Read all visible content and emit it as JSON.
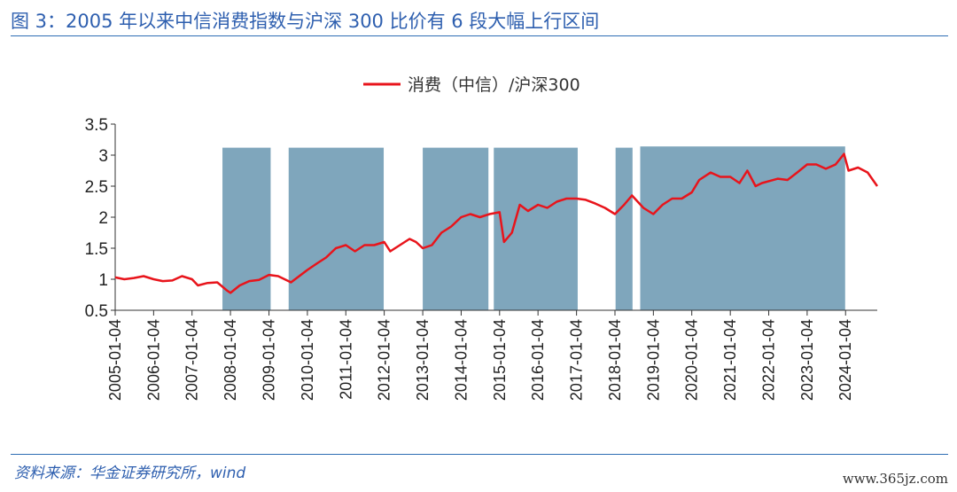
{
  "header": {
    "title": "图 3：2005 年以来中信消费指数与沪深 300 比价有 6 段大幅上行区间"
  },
  "footer": {
    "source": "资料来源：华金证券研究所，wind",
    "watermark": "www.365jz.com"
  },
  "colors": {
    "line": "#E8141B",
    "band": "#7FA6BC",
    "title": "#2E5FAF",
    "rule": "#2E6DB4"
  },
  "chart_data": {
    "type": "line",
    "title": "",
    "legend": {
      "position": "top-center",
      "entries": [
        "消费（中信）/沪深300"
      ]
    },
    "ylim": [
      0.5,
      3.5
    ],
    "yticks": [
      {
        "value": 0.5,
        "label": "0.5"
      },
      {
        "value": 1,
        "label": "1"
      },
      {
        "value": 1.5,
        "label": "1.5"
      },
      {
        "value": 2,
        "label": "2"
      },
      {
        "value": 2.5,
        "label": "2.5"
      },
      {
        "value": 3,
        "label": "3"
      },
      {
        "value": 3.5,
        "label": "3.5"
      }
    ],
    "xlim": [
      "2005-01-04",
      "2024-10-31"
    ],
    "xticks": [
      "2005-01-04",
      "2006-01-04",
      "2007-01-04",
      "2008-01-04",
      "2009-01-04",
      "2010-01-04",
      "2011-01-04",
      "2012-01-04",
      "2013-01-04",
      "2014-01-04",
      "2015-01-04",
      "2016-01-04",
      "2017-01-04",
      "2018-01-04",
      "2019-01-04",
      "2020-01-04",
      "2021-01-04",
      "2022-01-04",
      "2023-01-04",
      "2024-01-04"
    ],
    "grid": false,
    "shaded_ranges": [
      {
        "start": "2007-10-20",
        "end": "2009-01-20",
        "top": 3.12
      },
      {
        "start": "2009-07-10",
        "end": "2011-12-30",
        "top": 3.12
      },
      {
        "start": "2013-01-04",
        "end": "2014-09-20",
        "top": 3.12
      },
      {
        "start": "2014-11-10",
        "end": "2017-01-15",
        "top": 3.12
      },
      {
        "start": "2018-01-10",
        "end": "2018-06-20",
        "top": 3.12
      },
      {
        "start": "2018-09-01",
        "end": "2023-12-31",
        "top": 3.14
      }
    ],
    "series": [
      {
        "name": "消费（中信）/沪深300",
        "points": [
          [
            "2005-01-04",
            1.03
          ],
          [
            "2005-04-01",
            1.0
          ],
          [
            "2005-07-01",
            1.02
          ],
          [
            "2005-10-01",
            1.05
          ],
          [
            "2006-01-04",
            1.0
          ],
          [
            "2006-04-01",
            0.97
          ],
          [
            "2006-07-01",
            0.98
          ],
          [
            "2006-10-01",
            1.05
          ],
          [
            "2007-01-04",
            1.0
          ],
          [
            "2007-03-01",
            0.9
          ],
          [
            "2007-06-01",
            0.94
          ],
          [
            "2007-09-01",
            0.95
          ],
          [
            "2007-12-01",
            0.82
          ],
          [
            "2008-01-04",
            0.78
          ],
          [
            "2008-04-01",
            0.9
          ],
          [
            "2008-07-01",
            0.97
          ],
          [
            "2008-10-01",
            0.99
          ],
          [
            "2009-01-04",
            1.07
          ],
          [
            "2009-04-01",
            1.05
          ],
          [
            "2009-08-01",
            0.95
          ],
          [
            "2010-01-04",
            1.15
          ],
          [
            "2010-04-01",
            1.25
          ],
          [
            "2010-07-01",
            1.35
          ],
          [
            "2010-10-01",
            1.5
          ],
          [
            "2011-01-04",
            1.55
          ],
          [
            "2011-04-01",
            1.45
          ],
          [
            "2011-07-01",
            1.55
          ],
          [
            "2011-10-01",
            1.55
          ],
          [
            "2012-01-04",
            1.6
          ],
          [
            "2012-03-01",
            1.45
          ],
          [
            "2012-06-01",
            1.55
          ],
          [
            "2012-09-01",
            1.65
          ],
          [
            "2012-11-01",
            1.6
          ],
          [
            "2013-01-04",
            1.5
          ],
          [
            "2013-04-01",
            1.55
          ],
          [
            "2013-07-01",
            1.75
          ],
          [
            "2013-10-01",
            1.85
          ],
          [
            "2014-01-04",
            2.0
          ],
          [
            "2014-04-01",
            2.05
          ],
          [
            "2014-07-01",
            2.0
          ],
          [
            "2014-10-01",
            2.05
          ],
          [
            "2015-01-04",
            2.08
          ],
          [
            "2015-02-15",
            1.6
          ],
          [
            "2015-05-01",
            1.75
          ],
          [
            "2015-07-15",
            2.2
          ],
          [
            "2015-10-01",
            2.1
          ],
          [
            "2016-01-04",
            2.2
          ],
          [
            "2016-04-01",
            2.15
          ],
          [
            "2016-07-01",
            2.25
          ],
          [
            "2016-10-01",
            2.3
          ],
          [
            "2017-01-04",
            2.3
          ],
          [
            "2017-04-01",
            2.28
          ],
          [
            "2017-07-01",
            2.22
          ],
          [
            "2017-10-01",
            2.15
          ],
          [
            "2018-01-04",
            2.05
          ],
          [
            "2018-04-01",
            2.2
          ],
          [
            "2018-06-15",
            2.35
          ],
          [
            "2018-10-01",
            2.15
          ],
          [
            "2019-01-04",
            2.05
          ],
          [
            "2019-04-01",
            2.2
          ],
          [
            "2019-07-01",
            2.3
          ],
          [
            "2019-10-01",
            2.3
          ],
          [
            "2020-01-04",
            2.4
          ],
          [
            "2020-03-15",
            2.6
          ],
          [
            "2020-07-01",
            2.72
          ],
          [
            "2020-10-01",
            2.65
          ],
          [
            "2021-01-04",
            2.65
          ],
          [
            "2021-04-01",
            2.55
          ],
          [
            "2021-06-15",
            2.75
          ],
          [
            "2021-09-01",
            2.5
          ],
          [
            "2021-11-01",
            2.55
          ],
          [
            "2022-01-04",
            2.58
          ],
          [
            "2022-04-01",
            2.62
          ],
          [
            "2022-07-01",
            2.6
          ],
          [
            "2022-10-01",
            2.72
          ],
          [
            "2023-01-04",
            2.85
          ],
          [
            "2023-04-01",
            2.85
          ],
          [
            "2023-07-01",
            2.78
          ],
          [
            "2023-10-01",
            2.85
          ],
          [
            "2023-12-20",
            3.02
          ],
          [
            "2024-02-01",
            2.75
          ],
          [
            "2024-05-01",
            2.8
          ],
          [
            "2024-08-01",
            2.72
          ],
          [
            "2024-10-31",
            2.5
          ]
        ]
      }
    ]
  }
}
